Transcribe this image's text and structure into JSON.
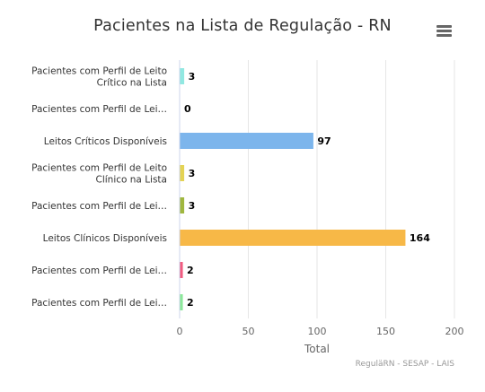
{
  "chart_data": {
    "type": "bar",
    "orientation": "horizontal",
    "title": "Pacientes na Lista de Regulação - RN",
    "categories": [
      "Pacientes com Perfil de Leito Crítico na Lista",
      "Pacientes com Perfil de Lei…",
      "Leitos Críticos Disponíveis",
      "Pacientes com Perfil de Leito Clínico na Lista",
      "Pacientes com Perfil de Lei…",
      "Leitos Clínicos Disponíveis",
      "Pacientes com Perfil de Lei…",
      "Pacientes com Perfil de Lei…"
    ],
    "values": [
      3,
      0,
      97,
      3,
      3,
      164,
      2,
      2
    ],
    "colors": [
      "#91e8e1",
      "#2b908f",
      "#7cb5ec",
      "#e4d354",
      "#a0b73f",
      "#f7b847",
      "#f15c80",
      "#8ce89a"
    ],
    "xlabel": "Total",
    "ylabel": "",
    "xlim": [
      0,
      200
    ],
    "ticks": [
      "0",
      "50",
      "100",
      "150",
      "200"
    ],
    "grid": true,
    "data_labels": true
  },
  "credits": "ReguläRN - SESAP - LAIS",
  "menu_icon": "hamburger-menu-icon"
}
